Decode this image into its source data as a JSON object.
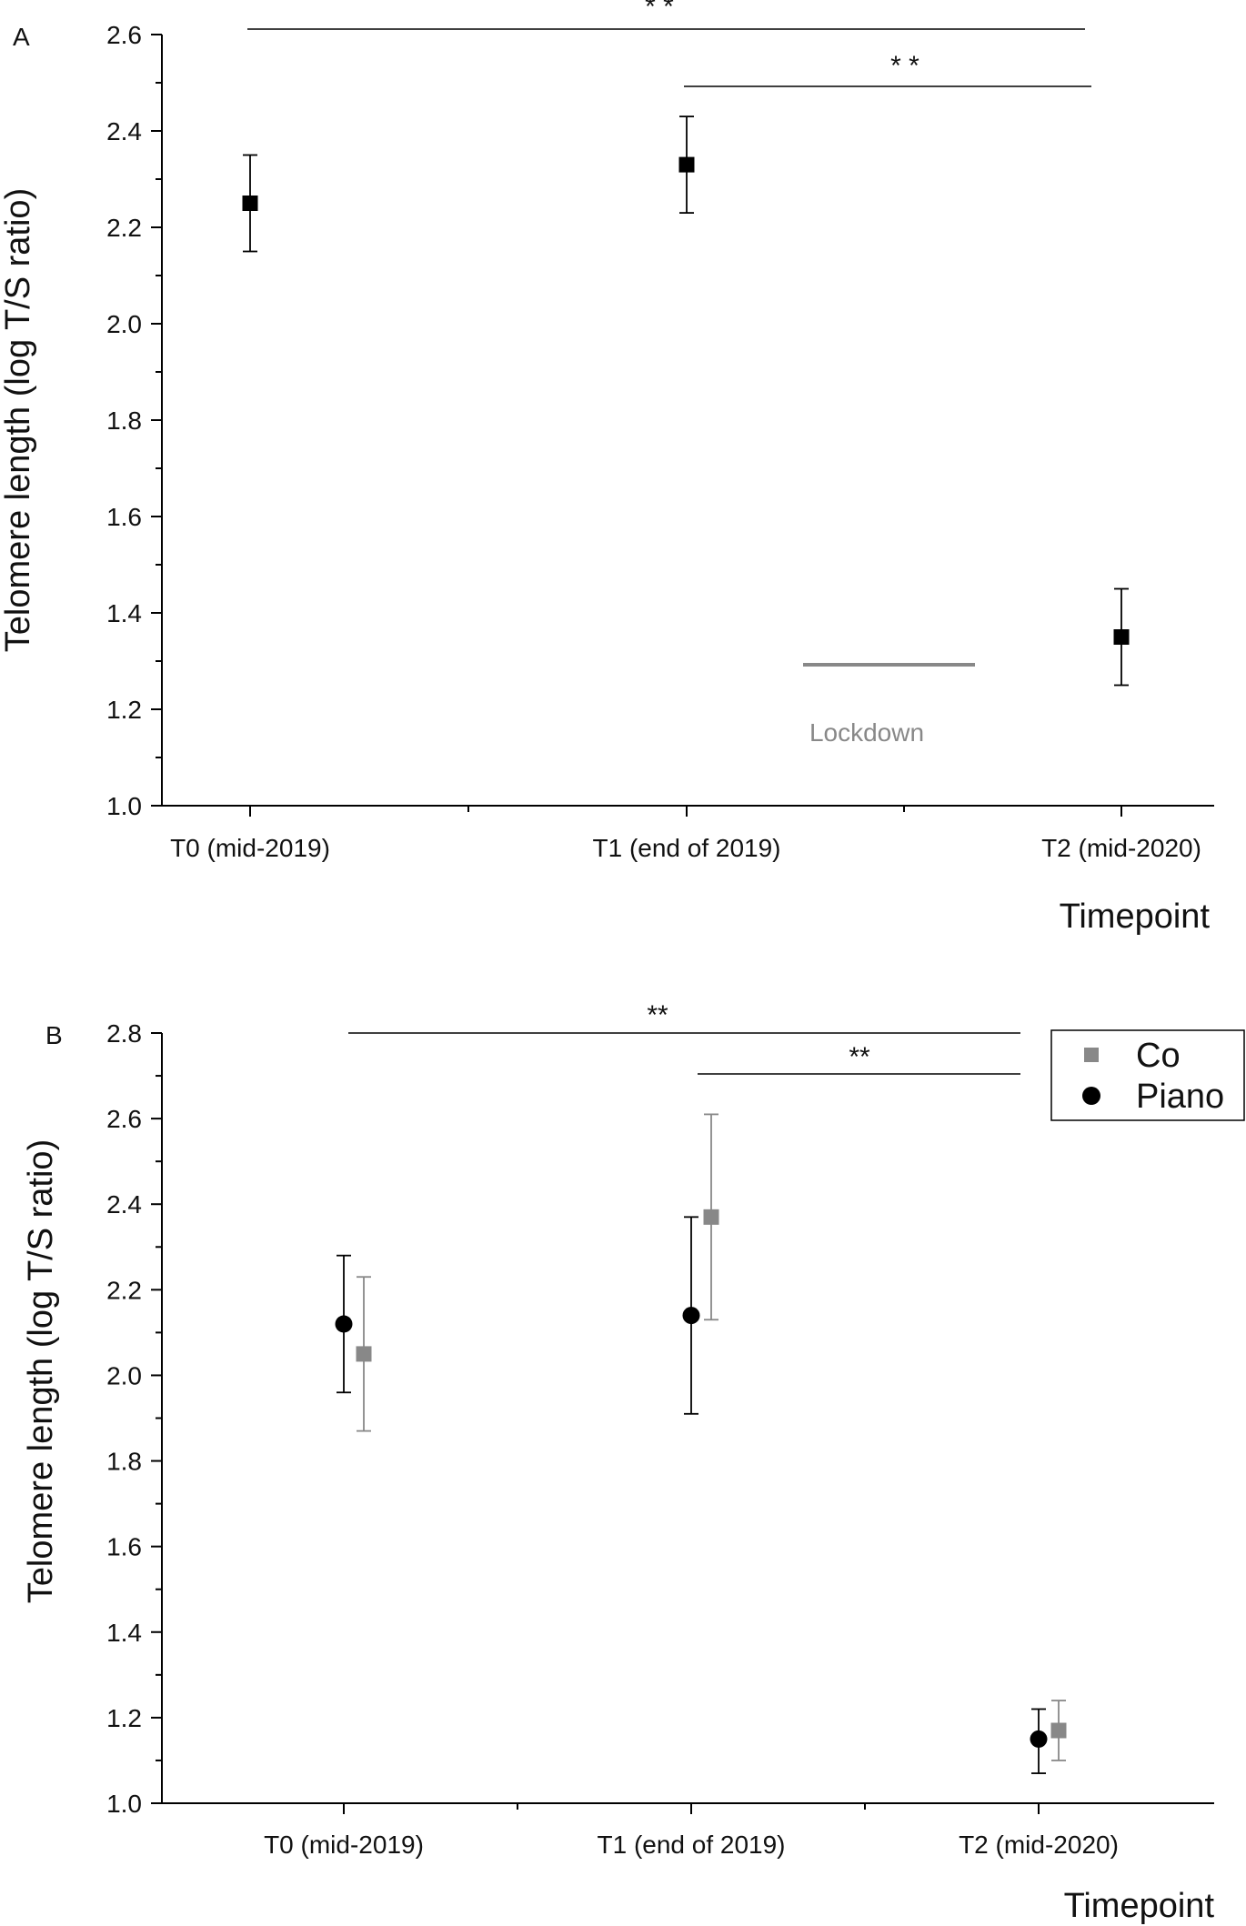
{
  "chart_data": [
    {
      "panel": "A",
      "type": "scatter",
      "xlabel": "Timepoint",
      "ylabel": "Telomere length (log T/S ratio)",
      "categories": [
        "T0 (mid-2019)",
        "T1 (end of 2019)",
        "T2 (mid-2020)"
      ],
      "ylim": [
        1.0,
        2.6
      ],
      "yticks": [
        "1.0",
        "1.2",
        "1.4",
        "1.6",
        "1.8",
        "2.0",
        "2.2",
        "2.4",
        "2.6"
      ],
      "grid": false,
      "series": [
        {
          "marker": "square",
          "color": "#000000",
          "values": [
            2.25,
            2.33,
            1.35
          ],
          "err_low": [
            2.15,
            2.23,
            1.25
          ],
          "err_high": [
            2.35,
            2.43,
            1.45
          ]
        }
      ],
      "significance": [
        {
          "from": "T0 (mid-2019)",
          "to": "T2 (mid-2020)",
          "label": "* *"
        },
        {
          "from": "T1 (end of 2019)",
          "to": "T2 (mid-2020)",
          "label": "* *"
        }
      ],
      "annotation": {
        "text": "Lockdown",
        "color": "#888888"
      }
    },
    {
      "panel": "B",
      "type": "scatter",
      "xlabel": "Timepoint",
      "ylabel": "Telomere length (log T/S ratio)",
      "categories": [
        "T0 (mid-2019)",
        "T1 (end of 2019)",
        "T2 (mid-2020)"
      ],
      "ylim": [
        1.0,
        2.8
      ],
      "yticks": [
        "1.0",
        "1.2",
        "1.4",
        "1.6",
        "1.8",
        "2.0",
        "2.2",
        "2.4",
        "2.6",
        "2.8"
      ],
      "grid": false,
      "legend_position": "top-right",
      "series": [
        {
          "name": "Co",
          "marker": "square",
          "color": "#888888",
          "values": [
            2.05,
            2.37,
            1.17
          ],
          "err_low": [
            1.87,
            2.13,
            1.1
          ],
          "err_high": [
            2.23,
            2.61,
            1.24
          ]
        },
        {
          "name": "Piano",
          "marker": "circle",
          "color": "#000000",
          "values": [
            2.12,
            2.14,
            1.15
          ],
          "err_low": [
            1.96,
            1.91,
            1.07
          ],
          "err_high": [
            2.28,
            2.37,
            1.22
          ]
        }
      ],
      "significance": [
        {
          "from": "T0 (mid-2019)",
          "to": "T2 (mid-2020)",
          "label": "**"
        },
        {
          "from": "T1 (end of 2019)",
          "to": "T2 (mid-2020)",
          "label": "**"
        }
      ]
    }
  ]
}
